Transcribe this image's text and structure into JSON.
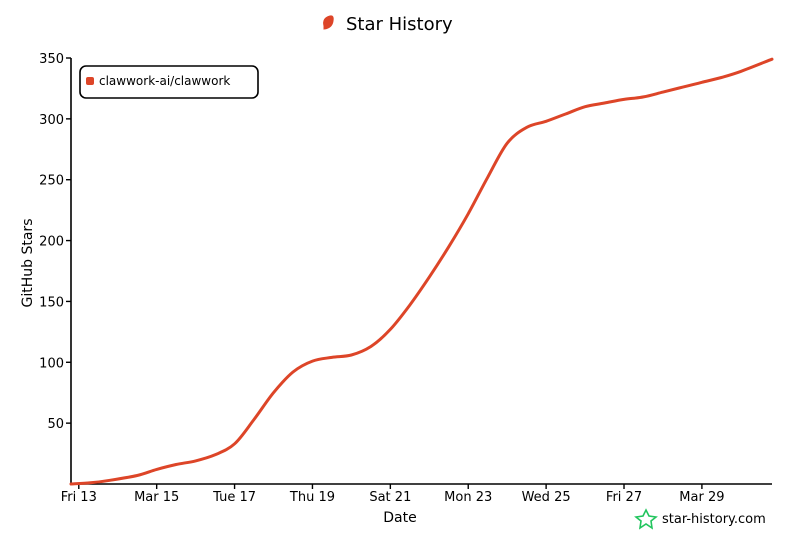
{
  "title": "Star History",
  "watermark": "star-history.com",
  "colors": {
    "series": "#dd4528",
    "watermark_icon": "#22c55e"
  },
  "chart_data": {
    "type": "line",
    "xlabel": "Date",
    "ylabel": "GitHub Stars",
    "ylim": [
      0,
      350
    ],
    "yticks": [
      50,
      100,
      150,
      200,
      250,
      300,
      350
    ],
    "xticks": [
      {
        "label": "Fri 13",
        "day": 13
      },
      {
        "label": "Mar 15",
        "day": 15
      },
      {
        "label": "Tue 17",
        "day": 17
      },
      {
        "label": "Thu 19",
        "day": 19
      },
      {
        "label": "Sat 21",
        "day": 21
      },
      {
        "label": "Mon 23",
        "day": 23
      },
      {
        "label": "Wed 25",
        "day": 25
      },
      {
        "label": "Fri 27",
        "day": 27
      },
      {
        "label": "Mar 29",
        "day": 29
      }
    ],
    "xlim": [
      12.8,
      30.8
    ],
    "legend": "top-left",
    "series": [
      {
        "name": "clawwork-ai/clawwork",
        "x": [
          12.8,
          13.3,
          13.8,
          14.5,
          15.0,
          15.5,
          16.0,
          16.5,
          17.0,
          17.5,
          18.0,
          18.5,
          19.0,
          19.5,
          20.0,
          20.5,
          21.0,
          21.5,
          22.0,
          22.5,
          23.0,
          23.5,
          24.0,
          24.5,
          25.0,
          25.5,
          26.0,
          26.5,
          27.0,
          27.5,
          28.0,
          28.5,
          29.0,
          29.5,
          30.0,
          30.8
        ],
        "y": [
          0,
          1,
          3,
          7,
          12,
          16,
          19,
          24,
          33,
          53,
          75,
          92,
          101,
          104,
          106,
          113,
          127,
          147,
          170,
          195,
          222,
          252,
          280,
          293,
          298,
          304,
          310,
          313,
          316,
          318,
          322,
          326,
          330,
          334,
          339,
          349
        ]
      }
    ]
  }
}
